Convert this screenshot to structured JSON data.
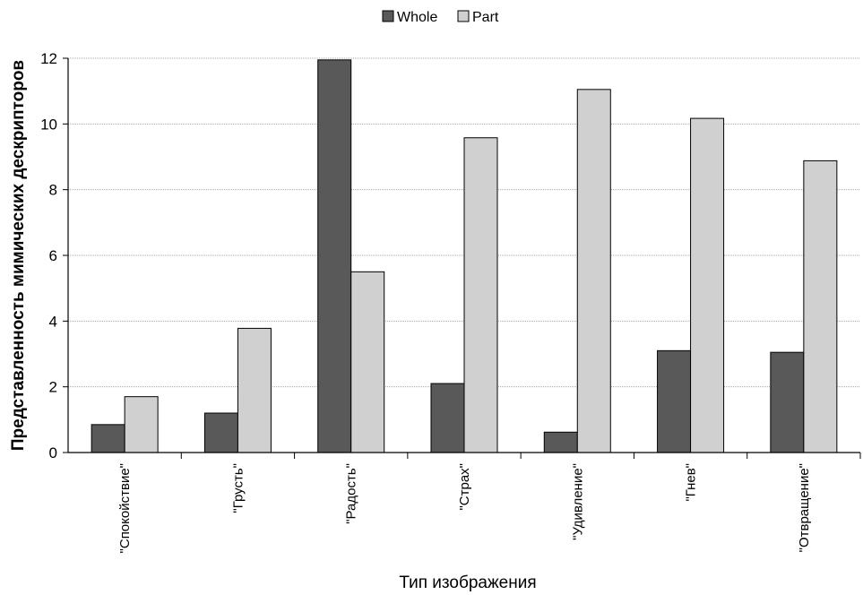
{
  "chart_data": {
    "type": "bar",
    "title": "",
    "xlabel": "Тип изображения",
    "ylabel": "Представленность мимических дескрипторов",
    "categories": [
      "\"Спокойствие\"",
      "\"Грусть\"",
      "\"Радость\"",
      "\"Страх\"",
      "\"Удивление\"",
      "\"Гнев\"",
      "\"Отвращение\""
    ],
    "series": [
      {
        "name": "Whole",
        "color": "#595959",
        "values": [
          0.85,
          1.2,
          11.95,
          2.1,
          0.62,
          3.1,
          3.05
        ]
      },
      {
        "name": "Part",
        "color": "#d0d0d0",
        "values": [
          1.7,
          3.78,
          5.5,
          9.58,
          11.05,
          10.17,
          8.88
        ]
      }
    ],
    "ylim": [
      0,
      12
    ],
    "yticks": [
      0,
      2,
      4,
      6,
      8,
      10,
      12
    ],
    "grid": true,
    "legend": "top-center"
  }
}
